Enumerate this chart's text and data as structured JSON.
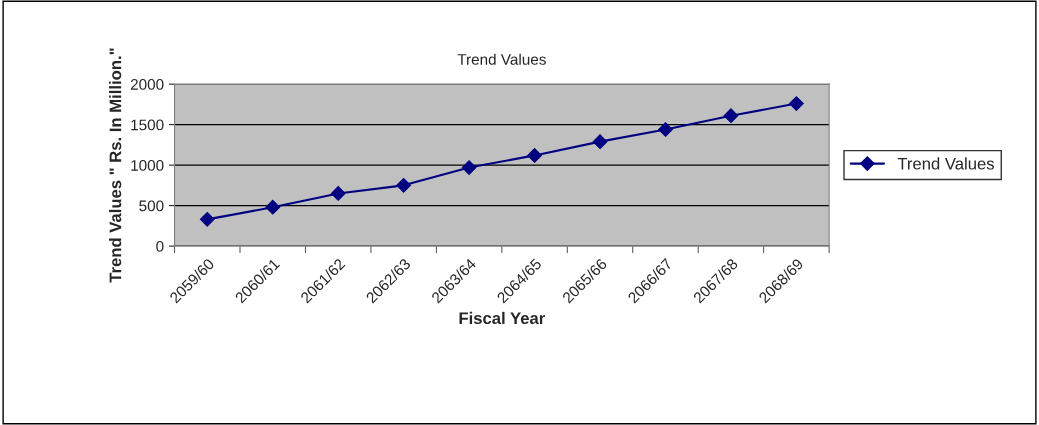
{
  "chart_data": {
    "type": "line",
    "title": "Trend Values",
    "xlabel": "Fiscal Year",
    "ylabel": "Trend Values \" Rs. In Million.\"",
    "categories": [
      "2059/60",
      "2060/61",
      "2061/62",
      "2062/63",
      "2063/64",
      "2064/65",
      "2065/66",
      "2066/67",
      "2067/68",
      "2068/69"
    ],
    "series": [
      {
        "name": "Trend Values",
        "color": "#000080",
        "values": [
          330,
          480,
          650,
          750,
          970,
          1120,
          1290,
          1440,
          1610,
          1760
        ]
      }
    ],
    "ylim": [
      0,
      2000
    ],
    "yticks": [
      0,
      500,
      1000,
      1500,
      2000
    ],
    "grid": "y",
    "legend": "right",
    "marker": "diamond",
    "line_style": "solid"
  }
}
